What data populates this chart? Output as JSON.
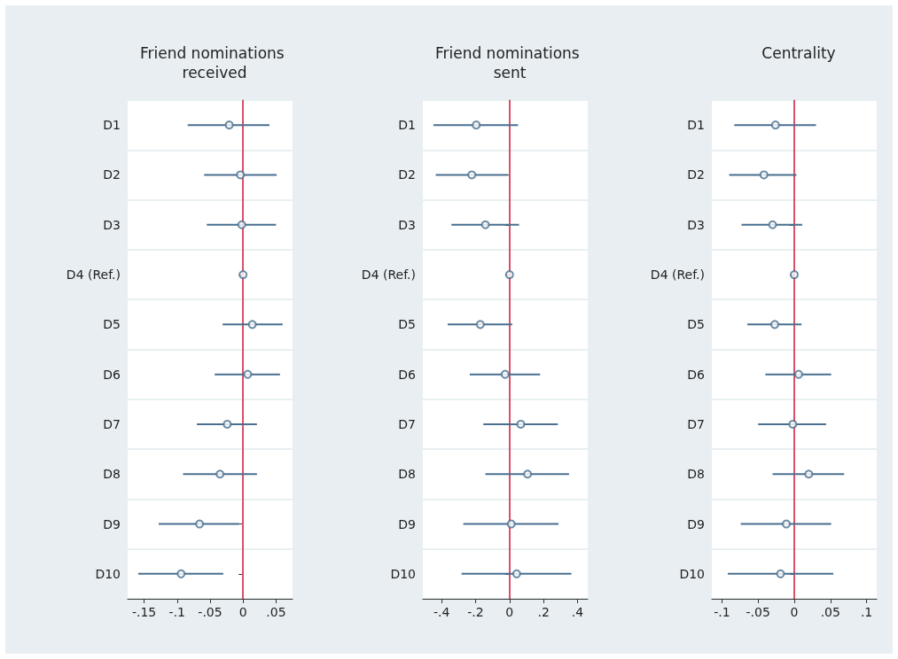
{
  "chart_data": [
    {
      "type": "scatter",
      "orientation": "horizontal",
      "title": "Friend nominations received",
      "categories": [
        "D1",
        "D2",
        "D3",
        "D4 (Ref.)",
        "D5",
        "D6",
        "D7",
        "D8",
        "D9",
        "D10"
      ],
      "values": [
        -0.021,
        -0.004,
        -0.002,
        0,
        0.014,
        0.007,
        -0.024,
        -0.035,
        -0.066,
        -0.094
      ],
      "errors": [
        [
          -0.084,
          0.04
        ],
        [
          -0.059,
          0.051
        ],
        [
          -0.055,
          0.05
        ],
        null,
        [
          -0.031,
          0.06
        ],
        [
          -0.043,
          0.056
        ],
        [
          -0.07,
          0.021
        ],
        [
          -0.091,
          0.021
        ],
        [
          -0.128,
          -0.006
        ],
        [
          -0.159,
          -0.03
        ]
      ],
      "color": "#4a6f8f",
      "marker": "circle",
      "grid": "y",
      "xlim": [
        -0.175,
        0.075
      ],
      "xticks": [
        {
          "value": -0.15,
          "label": "-.15"
        },
        {
          "value": -0.1,
          "label": "-.1"
        },
        {
          "value": -0.05,
          "label": "-.05"
        },
        {
          "value": 0,
          "label": "0"
        },
        {
          "value": 0.05,
          "label": ".05"
        }
      ],
      "ref_lines": [
        {
          "axis": "x",
          "value": 0,
          "color": "#d9506a"
        }
      ]
    },
    {
      "type": "scatter",
      "orientation": "horizontal",
      "title": "Friend nominations sent",
      "categories": [
        "D1",
        "D2",
        "D3",
        "D4 (Ref.)",
        "D5",
        "D6",
        "D7",
        "D8",
        "D9",
        "D10"
      ],
      "values": [
        -0.196,
        -0.222,
        -0.142,
        0,
        -0.172,
        -0.026,
        0.066,
        0.106,
        0.01,
        0.042
      ],
      "errors": [
        [
          -0.448,
          0.05
        ],
        [
          -0.434,
          -0.012
        ],
        [
          -0.342,
          0.056
        ],
        null,
        [
          -0.364,
          0.016
        ],
        [
          -0.234,
          0.18
        ],
        [
          -0.154,
          0.284
        ],
        [
          -0.142,
          0.35
        ],
        [
          -0.272,
          0.288
        ],
        [
          -0.282,
          0.364
        ]
      ],
      "color": "#4a6f8f",
      "marker": "circle",
      "grid": "y",
      "xlim": [
        -0.51,
        0.46
      ],
      "xticks": [
        {
          "value": -0.4,
          "label": "-.4"
        },
        {
          "value": -0.2,
          "label": "-.2"
        },
        {
          "value": 0,
          "label": "0"
        },
        {
          "value": 0.2,
          "label": ".2"
        },
        {
          "value": 0.4,
          "label": ".4"
        }
      ],
      "ref_lines": [
        {
          "axis": "x",
          "value": 0,
          "color": "#d9506a"
        }
      ]
    },
    {
      "type": "scatter",
      "orientation": "horizontal",
      "title": "Centrality",
      "categories": [
        "D1",
        "D2",
        "D3",
        "D4 (Ref.)",
        "D5",
        "D6",
        "D7",
        "D8",
        "D9",
        "D10"
      ],
      "values": [
        -0.026,
        -0.042,
        -0.03,
        0,
        -0.027,
        0.006,
        -0.002,
        0.02,
        -0.011,
        -0.019
      ],
      "errors": [
        [
          -0.083,
          0.03
        ],
        [
          -0.09,
          0.003
        ],
        [
          -0.073,
          0.011
        ],
        null,
        [
          -0.065,
          0.01
        ],
        [
          -0.04,
          0.051
        ],
        [
          -0.05,
          0.044
        ],
        [
          -0.03,
          0.069
        ],
        [
          -0.074,
          0.051
        ],
        [
          -0.092,
          0.054
        ]
      ],
      "color": "#4a6f8f",
      "marker": "circle",
      "grid": "y",
      "xlim": [
        -0.114,
        0.114
      ],
      "xticks": [
        {
          "value": -0.1,
          "label": "-.1"
        },
        {
          "value": -0.05,
          "label": "-.05"
        },
        {
          "value": 0,
          "label": "0"
        },
        {
          "value": 0.05,
          "label": ".05"
        },
        {
          "value": 0.1,
          "label": ".1"
        }
      ],
      "ref_lines": [
        {
          "axis": "x",
          "value": 0,
          "color": "#d9506a"
        }
      ]
    }
  ]
}
